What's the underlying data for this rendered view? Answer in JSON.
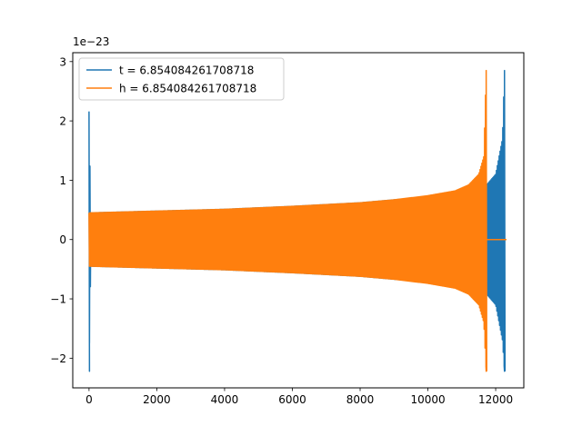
{
  "chart_data": {
    "type": "line",
    "title": "",
    "xlabel": "",
    "ylabel": "",
    "xlim": [
      -480,
      12830
    ],
    "ylim": [
      -2.5,
      3.15
    ],
    "y_multiplier_label": "1e−23",
    "x_ticks": [
      0,
      2000,
      4000,
      6000,
      8000,
      10000,
      12000
    ],
    "x_tick_labels": [
      "0",
      "2000",
      "4000",
      "6000",
      "8000",
      "10000",
      "12000"
    ],
    "y_ticks": [
      -2,
      -1,
      0,
      1,
      2,
      3
    ],
    "y_tick_labels": [
      "−2",
      "−1",
      "0",
      "1",
      "2",
      "3"
    ],
    "grid": false,
    "legend_position": "upper-left",
    "series": [
      {
        "name": "t = 6.854084261708718",
        "color": "#1f77b4",
        "description": "oscillating chirp signal",
        "upper_envelope": [
          [
            0,
            2.15
          ],
          [
            50,
            0.45
          ],
          [
            2000,
            0.48
          ],
          [
            4000,
            0.51
          ],
          [
            6000,
            0.56
          ],
          [
            8000,
            0.62
          ],
          [
            10000,
            0.72
          ],
          [
            11000,
            0.82
          ],
          [
            11700,
            0.9
          ],
          [
            12000,
            1.1
          ],
          [
            12200,
            1.7
          ],
          [
            12260,
            2.85
          ]
        ],
        "lower_envelope": [
          [
            0,
            -2.22
          ],
          [
            50,
            -0.45
          ],
          [
            2000,
            -0.48
          ],
          [
            4000,
            -0.51
          ],
          [
            6000,
            -0.56
          ],
          [
            8000,
            -0.62
          ],
          [
            10000,
            -0.72
          ],
          [
            11000,
            -0.82
          ],
          [
            11700,
            -0.9
          ],
          [
            12000,
            -1.1
          ],
          [
            12200,
            -1.7
          ],
          [
            12260,
            -2.22
          ]
        ],
        "flat_after": [
          [
            12270,
            0
          ],
          [
            12320,
            0
          ]
        ]
      },
      {
        "name": "h = 6.854084261708718",
        "color": "#ff7f0e",
        "description": "oscillating chirp signal",
        "upper_envelope": [
          [
            0,
            0.45
          ],
          [
            2000,
            0.48
          ],
          [
            4000,
            0.51
          ],
          [
            6000,
            0.56
          ],
          [
            8000,
            0.62
          ],
          [
            9000,
            0.67
          ],
          [
            10000,
            0.74
          ],
          [
            10800,
            0.82
          ],
          [
            11200,
            0.92
          ],
          [
            11500,
            1.1
          ],
          [
            11650,
            1.4
          ],
          [
            11720,
            2.85
          ]
        ],
        "lower_envelope": [
          [
            0,
            -0.45
          ],
          [
            2000,
            -0.48
          ],
          [
            4000,
            -0.51
          ],
          [
            6000,
            -0.56
          ],
          [
            8000,
            -0.62
          ],
          [
            9000,
            -0.67
          ],
          [
            10000,
            -0.74
          ],
          [
            10800,
            -0.82
          ],
          [
            11200,
            -0.92
          ],
          [
            11500,
            -1.1
          ],
          [
            11650,
            -1.4
          ],
          [
            11720,
            -2.22
          ]
        ],
        "flat_after": [
          [
            11730,
            0
          ],
          [
            12320,
            0
          ]
        ]
      }
    ]
  }
}
